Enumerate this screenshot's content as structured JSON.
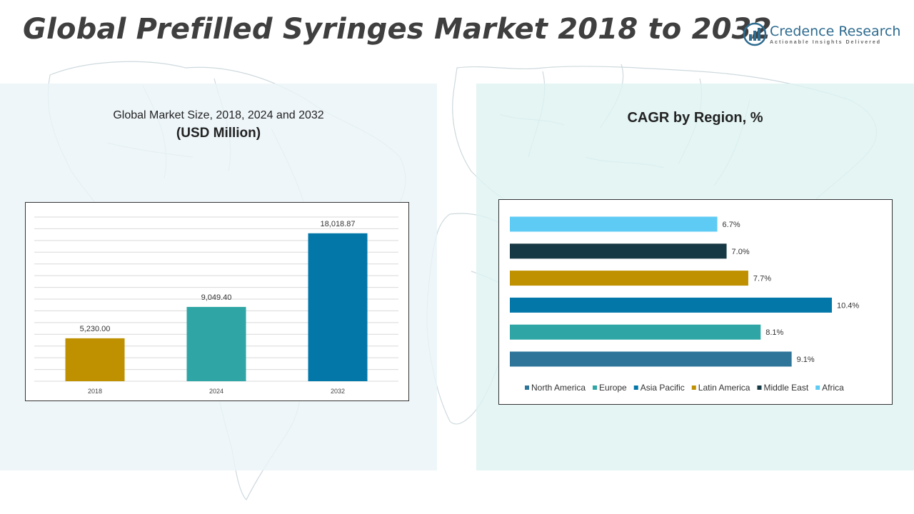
{
  "page": {
    "title": "Global Prefilled Syringes Market 2018 to 2032"
  },
  "logo": {
    "name": "Credence Research",
    "tagline": "Actionable Insights Delivered",
    "color": "#2d6b8f"
  },
  "left_panel": {
    "subtitle": "Global Market Size, 2018, 2024 and 2032",
    "unit": "(USD Million)"
  },
  "right_panel": {
    "title": "CAGR by Region, %"
  },
  "chart_data": [
    {
      "type": "bar",
      "title": "Global Market Size, 2018, 2024 and 2032",
      "ylabel": "",
      "xlabel": "",
      "categories": [
        "2018",
        "2024",
        "2032"
      ],
      "values": [
        5230.0,
        9049.4,
        18018.87
      ],
      "data_labels": [
        "5,230.00",
        "9,049.40",
        "18,018.87"
      ],
      "colors": [
        "#bf9000",
        "#2fa5a5",
        "#0277a8"
      ],
      "ylim": [
        0,
        20000
      ],
      "grid": true,
      "legend": "none"
    },
    {
      "type": "bar",
      "orientation": "horizontal",
      "title": "CAGR by Region, %",
      "categories": [
        "Africa",
        "Middle East",
        "Latin America",
        "Asia Pacific",
        "Europe",
        "North America"
      ],
      "values": [
        6.7,
        7.0,
        7.7,
        10.4,
        8.1,
        9.1
      ],
      "data_labels": [
        "6.7%",
        "7.0%",
        "7.7%",
        "10.4%",
        "8.1%",
        "9.1%"
      ],
      "colors": [
        "#5ecbf5",
        "#173845",
        "#bf9000",
        "#0277a8",
        "#2fa5a5",
        "#2e7599"
      ],
      "xlim": [
        0,
        11
      ],
      "grid": false,
      "legend": "bottom",
      "legend_order": [
        "North America",
        "Europe",
        "Asia Pacific",
        "Latin America",
        "Middle East",
        "Africa"
      ]
    }
  ]
}
